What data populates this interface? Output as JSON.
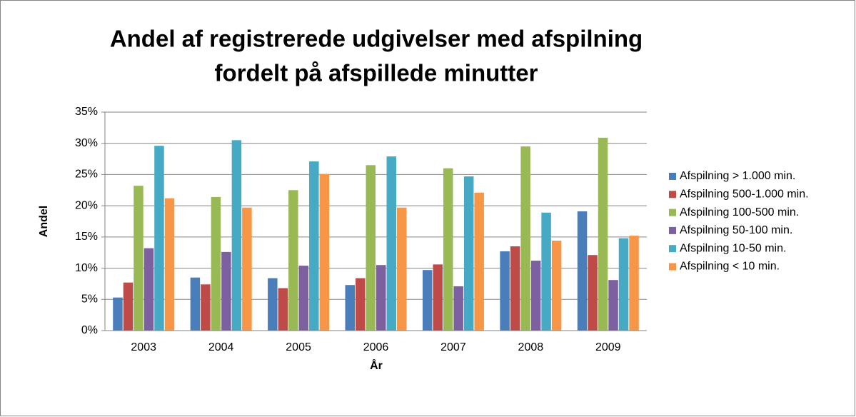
{
  "chart_data": {
    "type": "bar",
    "title": [
      "Andel af registrerede udgivelser med afspilning",
      "fordelt på afspillede minutter"
    ],
    "x_label": "År",
    "y_label": "Andel",
    "categories": [
      "2003",
      "2004",
      "2005",
      "2006",
      "2007",
      "2008",
      "2009"
    ],
    "series": [
      {
        "name": "Afspilning > 1.000 min.",
        "color": "#4a7ebb",
        "values": [
          5.3,
          8.5,
          8.4,
          7.3,
          9.7,
          12.7,
          19.1
        ]
      },
      {
        "name": "Afspilning 500-1.000 min.",
        "color": "#be4b48",
        "values": [
          7.7,
          7.4,
          6.8,
          8.4,
          10.6,
          13.5,
          12.1
        ]
      },
      {
        "name": "Afspilning 100-500 min.",
        "color": "#98b954",
        "values": [
          23.2,
          21.4,
          22.5,
          26.5,
          26.0,
          29.5,
          30.9
        ]
      },
      {
        "name": "Afspilning 50-100 min.",
        "color": "#7d60a0",
        "values": [
          13.2,
          12.6,
          10.4,
          10.5,
          7.1,
          11.2,
          8.1
        ]
      },
      {
        "name": "Afspilning 10-50 min.",
        "color": "#46aac5",
        "values": [
          29.6,
          30.5,
          27.1,
          27.9,
          24.7,
          18.9,
          14.8
        ]
      },
      {
        "name": "Afspilning < 10 min.",
        "color": "#f79646",
        "values": [
          21.2,
          19.7,
          25.1,
          19.7,
          22.1,
          14.4,
          15.2
        ]
      }
    ],
    "ylim": [
      0,
      35
    ],
    "yticks": [
      {
        "value": 0,
        "label": "0%"
      },
      {
        "value": 5,
        "label": "5%"
      },
      {
        "value": 10,
        "label": "10%"
      },
      {
        "value": 15,
        "label": "15%"
      },
      {
        "value": 20,
        "label": "20%"
      },
      {
        "value": 25,
        "label": "25%"
      },
      {
        "value": 30,
        "label": "30%"
      },
      {
        "value": 35,
        "label": "35%"
      }
    ],
    "grid": true,
    "legend": "right"
  }
}
